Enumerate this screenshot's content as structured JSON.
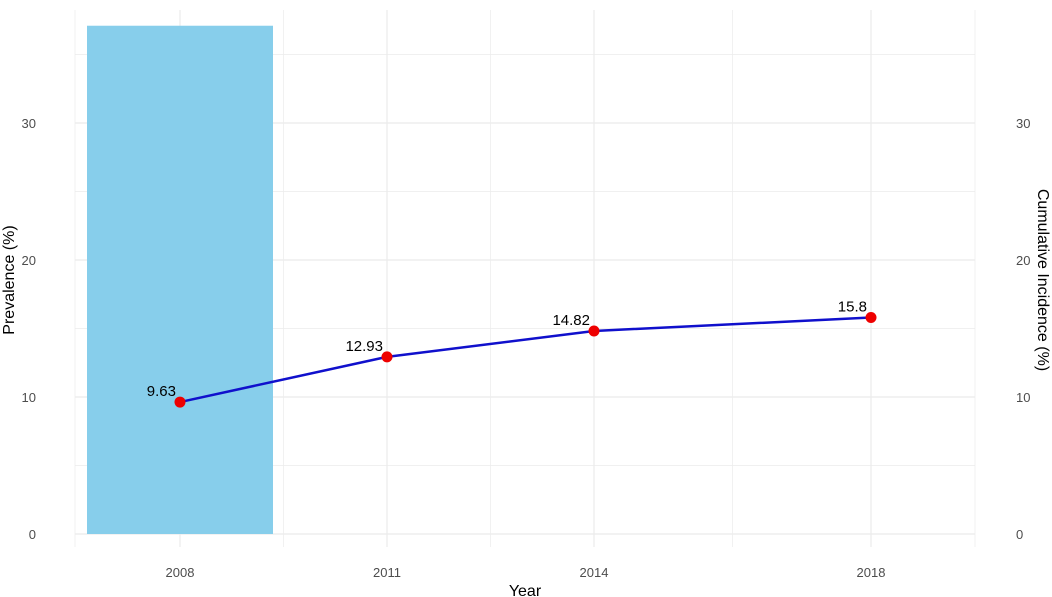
{
  "chart_data": {
    "type": "bar+line",
    "x_categories": [
      "2008",
      "2011",
      "2014",
      "2018"
    ],
    "bar": {
      "category": "2008",
      "value": 37.1,
      "color": "#87CEEB"
    },
    "line": {
      "x": [
        "2008",
        "2011",
        "2014",
        "2018"
      ],
      "values": [
        9.63,
        12.93,
        14.82,
        15.8
      ],
      "value_labels": [
        "9.63",
        "12.93",
        "14.82",
        "15.8"
      ],
      "line_color": "#1010CC",
      "point_color": "#EE0000"
    },
    "xlabel": "Year",
    "ylabel_left": "Prevalence (%)",
    "ylabel_right": "Cumulative Incidence (%)",
    "y_ticks": [
      0,
      10,
      20,
      30
    ],
    "y_tick_labels": [
      "0",
      "10",
      "20",
      "30"
    ],
    "ylim": [
      0,
      38.8
    ],
    "grid": true,
    "grid_color": "#EBEBEB"
  }
}
